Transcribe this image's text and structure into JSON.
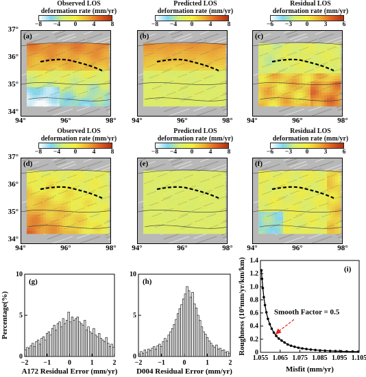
{
  "map_panels": [
    {
      "id": "a",
      "letter": "(a)",
      "title1": "Observed LOS",
      "title2": "deformation rate (mm/yr)",
      "ticks": [
        "−8",
        "−4",
        "0",
        "4",
        "8"
      ],
      "scale": "main",
      "field": "observed_a"
    },
    {
      "id": "b",
      "letter": "(b)",
      "title1": "Predicted LOS",
      "title2": "deformation rate (mm/yr)",
      "ticks": [
        "−8",
        "−4",
        "0",
        "4",
        "8"
      ],
      "scale": "main",
      "field": "predicted_b"
    },
    {
      "id": "c",
      "letter": "(c)",
      "title1": "Residual LOS",
      "title2": "deformation rate (mm/yr)",
      "ticks": [
        "−6",
        "−3",
        "0",
        "3",
        "6"
      ],
      "scale": "residual",
      "field": "residual_c"
    },
    {
      "id": "d",
      "letter": "(d)",
      "title1": "Observed LOS",
      "title2": "deformation rate (mm/yr)",
      "ticks": [
        "−8",
        "−4",
        "0",
        "4",
        "8"
      ],
      "scale": "main",
      "field": "observed_d"
    },
    {
      "id": "e",
      "letter": "(e)",
      "title1": "Predicted LOS",
      "title2": "deformation rate (mm/yr)",
      "ticks": [
        "−8",
        "−4",
        "0",
        "4",
        "8"
      ],
      "scale": "main",
      "field": "predicted_e"
    },
    {
      "id": "f",
      "letter": "(f)",
      "title1": "Residual LOS",
      "title2": "deformation rate (mm/yr)",
      "ticks": [
        "−6",
        "−3",
        "0",
        "3",
        "6"
      ],
      "scale": "residual",
      "field": "residual_f"
    }
  ],
  "map_axes": {
    "lat_labels": [
      "37°",
      "36°",
      "35°",
      "34°"
    ],
    "lon_labels": [
      "94°",
      "96°",
      "98°"
    ]
  },
  "colors": {
    "palette": [
      "#ffffff",
      "#7fd6f0",
      "#d8f070",
      "#f2f040",
      "#f0b030",
      "#e06020",
      "#b03010"
    ],
    "fault": "#000000"
  },
  "chart_data": [
    {
      "type": "bar",
      "panel": "(g)",
      "xlabel": "A172 Residual Error (mm/yr)",
      "ylabel": "Percentage(%)",
      "xlim": [
        -2,
        2
      ],
      "ylim": [
        0,
        10
      ],
      "xticks": [
        "−2",
        "−1",
        "0",
        "1",
        "2"
      ],
      "yticks": [
        "0",
        "5",
        "10"
      ],
      "bin_width": 0.08,
      "x_start": -2.0,
      "values": [
        0.8,
        1.1,
        1.0,
        1.3,
        1.6,
        1.2,
        1.8,
        2.0,
        1.5,
        2.2,
        2.4,
        2.0,
        2.8,
        3.0,
        2.6,
        3.4,
        3.8,
        3.2,
        4.0,
        4.2,
        3.6,
        4.6,
        4.0,
        4.4,
        5.4,
        4.2,
        4.8,
        4.4,
        4.6,
        4.8,
        4.2,
        4.0,
        3.8,
        4.4,
        3.2,
        3.6,
        3.0,
        2.8,
        3.4,
        2.6,
        2.4,
        2.8,
        2.2,
        2.0,
        1.8,
        2.3,
        1.6,
        1.2,
        1.5,
        1.1
      ]
    },
    {
      "type": "bar",
      "panel": "(h)",
      "xlabel": "D004 Residual Error (mm/yr)",
      "xlim": [
        -2,
        2
      ],
      "ylim": [
        0,
        10
      ],
      "xticks": [
        "−2",
        "−1",
        "0",
        "1",
        "2"
      ],
      "yticks": [
        "0",
        "5",
        "10"
      ],
      "bin_width": 0.08,
      "x_start": -2.0,
      "values": [
        0.3,
        0.6,
        0.4,
        0.8,
        0.5,
        0.9,
        0.7,
        1.0,
        1.2,
        0.9,
        1.3,
        1.5,
        1.2,
        1.8,
        2.2,
        1.9,
        2.6,
        3.0,
        3.4,
        3.9,
        4.5,
        5.2,
        5.8,
        6.3,
        7.0,
        7.6,
        8.5,
        8.0,
        7.2,
        7.8,
        6.4,
        5.9,
        5.0,
        4.4,
        3.6,
        3.0,
        2.7,
        2.3,
        1.9,
        1.6,
        1.3,
        1.1,
        1.4,
        0.9,
        1.0,
        0.7,
        0.8,
        0.5,
        0.6,
        0.4
      ]
    },
    {
      "type": "line",
      "panel": "(i)",
      "xlabel": "Misfit (mm/yr)",
      "ylabel": "Roughness (10⁵mm/yr/km/km)",
      "xlim": [
        1.055,
        1.105
      ],
      "ylim": [
        0,
        1.4
      ],
      "xticks": [
        "1.055",
        "1.065",
        "1.075",
        "1.085",
        "1.095",
        "1.105"
      ],
      "yticks": [
        "0",
        "0.2",
        "0.4",
        "0.6",
        "0.8",
        "1.0",
        "1.2",
        "1.4"
      ],
      "x": [
        1.0555,
        1.0558,
        1.0562,
        1.0567,
        1.0573,
        1.058,
        1.0588,
        1.0597,
        1.0607,
        1.0618,
        1.063,
        1.0643,
        1.0657,
        1.0672,
        1.0688,
        1.0705,
        1.0723,
        1.0742,
        1.0762,
        1.0783,
        1.0805,
        1.0828,
        1.0852,
        1.0877,
        1.0903,
        1.093,
        1.0958,
        1.0987,
        1.1017,
        1.1045
      ],
      "y": [
        1.25,
        1.12,
        0.98,
        0.84,
        0.72,
        0.61,
        0.51,
        0.43,
        0.36,
        0.3,
        0.25,
        0.21,
        0.18,
        0.15,
        0.12,
        0.1,
        0.085,
        0.07,
        0.06,
        0.05,
        0.042,
        0.036,
        0.03,
        0.026,
        0.022,
        0.019,
        0.016,
        0.014,
        0.012,
        0.01
      ],
      "annotation": "Smooth Factor = 0.5",
      "annotation_point": [
        1.0625,
        0.27
      ]
    }
  ]
}
